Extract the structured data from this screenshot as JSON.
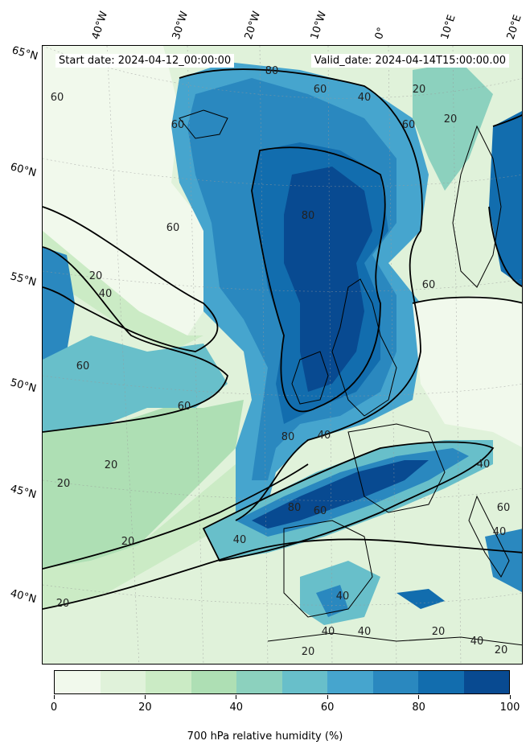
{
  "header": {
    "start_date": "Start date: 2024-04-12_00:00:00",
    "valid_date": "Valid_date: 2024-04-14T15:00:00.00"
  },
  "map": {
    "projection": "lambert-conformal",
    "extent": {
      "lon_min": -40,
      "lon_max": 20,
      "lat_min": 37,
      "lat_max": 65
    },
    "gridlines": true,
    "coastlines": true,
    "lat_labels": [
      "65°N",
      "60°N",
      "55°N",
      "50°N",
      "45°N",
      "40°N"
    ],
    "lon_labels": [
      "40°W",
      "30°W",
      "20°W",
      "10°W",
      "0°",
      "10°E",
      "20°E"
    ],
    "contour_levels": [
      20,
      40,
      60,
      80
    ],
    "contour_labels": [
      {
        "text": "60"
      },
      {
        "text": "80"
      },
      {
        "text": "60"
      },
      {
        "text": "40"
      },
      {
        "text": "20"
      },
      {
        "text": "60"
      },
      {
        "text": "60"
      },
      {
        "text": "80"
      },
      {
        "text": "60"
      },
      {
        "text": "20"
      },
      {
        "text": "40"
      },
      {
        "text": "60"
      },
      {
        "text": "60"
      },
      {
        "text": "20"
      },
      {
        "text": "80"
      },
      {
        "text": "40"
      },
      {
        "text": "20"
      },
      {
        "text": "80"
      },
      {
        "text": "60"
      },
      {
        "text": "40"
      },
      {
        "text": "40"
      },
      {
        "text": "20"
      },
      {
        "text": "20"
      },
      {
        "text": "20"
      },
      {
        "text": "40"
      },
      {
        "text": "40"
      },
      {
        "text": "20"
      },
      {
        "text": "40"
      },
      {
        "text": "20"
      },
      {
        "text": "40"
      },
      {
        "text": "60"
      },
      {
        "text": "40"
      },
      {
        "text": "60"
      },
      {
        "text": "20"
      }
    ]
  },
  "colorbar": {
    "label": "700 hPa relative humidity (%)",
    "ticks": [
      "0",
      "20",
      "40",
      "60",
      "80",
      "100"
    ],
    "colors": [
      "#f1f9ec",
      "#e0f2da",
      "#cbebc5",
      "#aedfb4",
      "#8cd1be",
      "#68bfca",
      "#46a5ce",
      "#2a88bf",
      "#126dae",
      "#084a91"
    ]
  },
  "chart_data": {
    "type": "heatmap",
    "title": "",
    "variable": "700 hPa relative humidity (%)",
    "value_range": [
      0,
      100
    ],
    "levels": [
      0,
      10,
      20,
      30,
      40,
      50,
      60,
      70,
      80,
      90,
      100
    ],
    "colorbar_ticks": [
      0,
      20,
      40,
      60,
      80,
      100
    ],
    "contour_lines": [
      20,
      40,
      60,
      80
    ]
  }
}
